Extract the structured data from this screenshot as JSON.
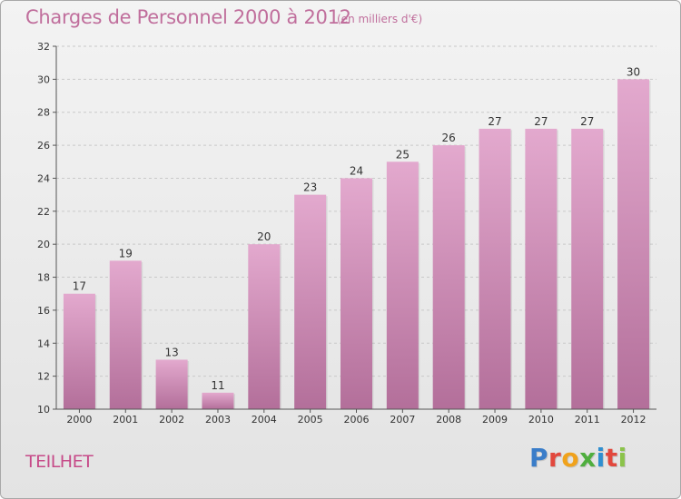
{
  "page": {
    "commune": "TEILHET",
    "logo_text": "Proxiti",
    "logo_colors": [
      "#3a7dc9",
      "#e2483d",
      "#f0a21c",
      "#4fae3e",
      "#2f8fd0",
      "#e2483d",
      "#8bc34a"
    ]
  },
  "chart_data": {
    "type": "bar",
    "title": "Charges de Personnel 2000 à 2012",
    "subtitle": "(en milliers d'€)",
    "categories": [
      "2000",
      "2001",
      "2002",
      "2003",
      "2004",
      "2005",
      "2006",
      "2007",
      "2008",
      "2009",
      "2010",
      "2011",
      "2012"
    ],
    "values": [
      17,
      19,
      13,
      11,
      20,
      23,
      24,
      25,
      26,
      27,
      27,
      27,
      30
    ],
    "data_labels": [
      "17",
      "19",
      "13",
      "11",
      "20",
      "23",
      "24",
      "25",
      "26",
      "27",
      "27",
      "27",
      "30"
    ],
    "xlabel": "",
    "ylabel": "",
    "ylim": [
      10,
      32
    ],
    "yticks": [
      "10",
      "12",
      "14",
      "16",
      "18",
      "20",
      "22",
      "24",
      "26",
      "28",
      "30",
      "32"
    ],
    "grid": "horizontal dashed",
    "colors": {
      "bar_top": "#e3a9ce",
      "bar_bottom": "#b36f9a",
      "text": "#c06e9c"
    }
  }
}
